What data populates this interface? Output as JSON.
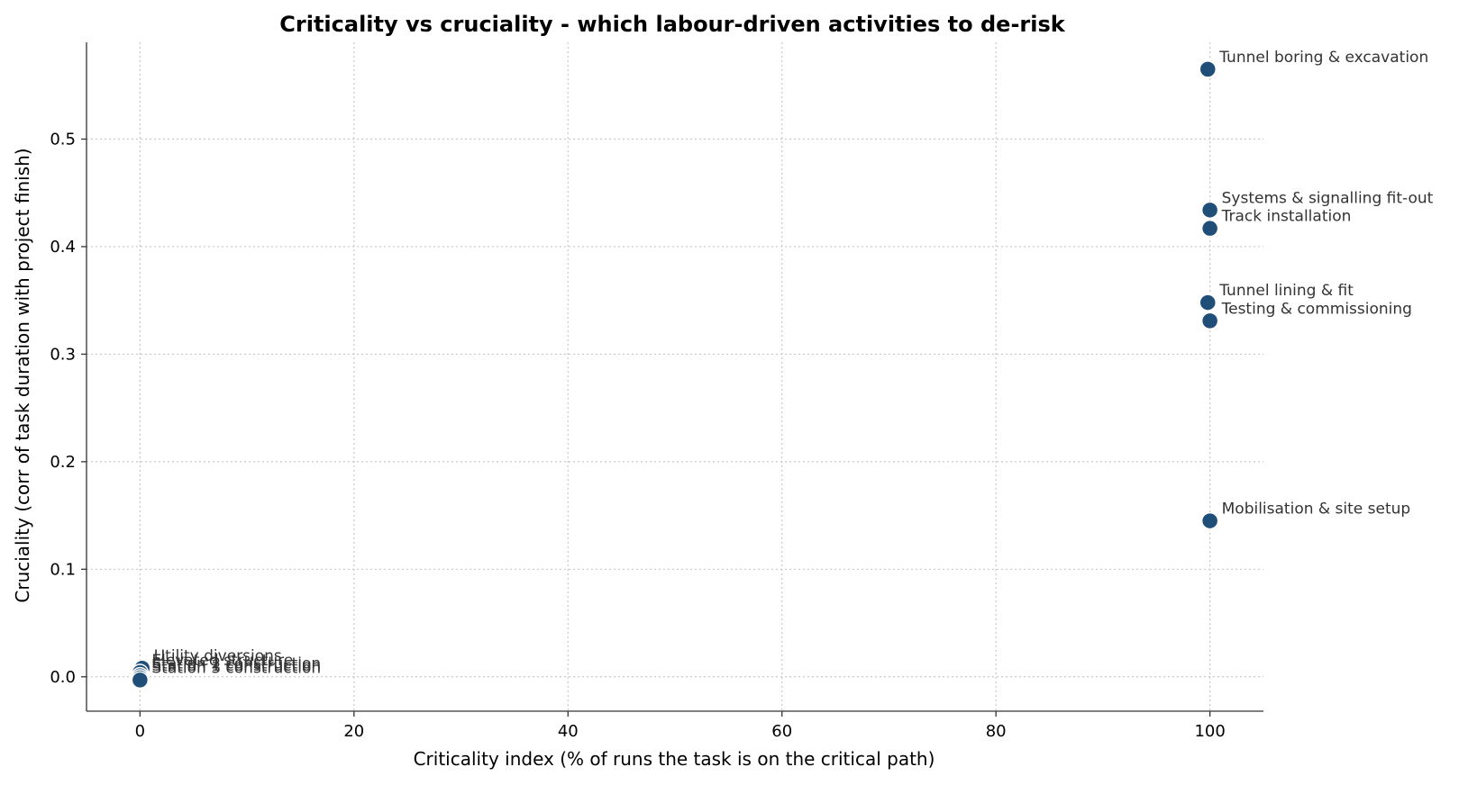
{
  "chart_data": {
    "type": "scatter",
    "title": "Criticality vs cruciality - which labour-driven activities to de-risk",
    "xlabel": "Criticality index  (% of runs the task is on the critical path)",
    "ylabel": "Cruciality  (corr of task duration with project finish)",
    "xlim": [
      -5,
      105
    ],
    "ylim": [
      -0.032,
      0.59
    ],
    "xticks": [
      0,
      20,
      40,
      60,
      80,
      100
    ],
    "yticks": [
      0.0,
      0.1,
      0.2,
      0.3,
      0.4,
      0.5
    ],
    "xtick_labels": [
      "0",
      "20",
      "40",
      "60",
      "80",
      "100"
    ],
    "ytick_labels": [
      "0.0",
      "0.1",
      "0.2",
      "0.3",
      "0.4",
      "0.5"
    ],
    "grid": true,
    "marker_color": "#1f4e79",
    "points": [
      {
        "label": "Tunnel boring & excavation",
        "x": 99.8,
        "y": 0.565
      },
      {
        "label": "Systems & signalling fit-out",
        "x": 100.0,
        "y": 0.434
      },
      {
        "label": "Track installation",
        "x": 100.0,
        "y": 0.417
      },
      {
        "label": "Tunnel lining & fit",
        "x": 99.8,
        "y": 0.348
      },
      {
        "label": "Testing & commissioning",
        "x": 100.0,
        "y": 0.331
      },
      {
        "label": "Mobilisation & site setup",
        "x": 100.0,
        "y": 0.145
      },
      {
        "label": "Utility diversions",
        "x": 0.2,
        "y": 0.008
      },
      {
        "label": "Elevated structure",
        "x": 0.0,
        "y": 0.004
      },
      {
        "label": "Station 2 construction",
        "x": 0.0,
        "y": 0.001
      },
      {
        "label": "Station 1 construction",
        "x": 0.0,
        "y": -0.001
      },
      {
        "label": "Station 3 construction",
        "x": 0.0,
        "y": -0.003
      }
    ]
  }
}
